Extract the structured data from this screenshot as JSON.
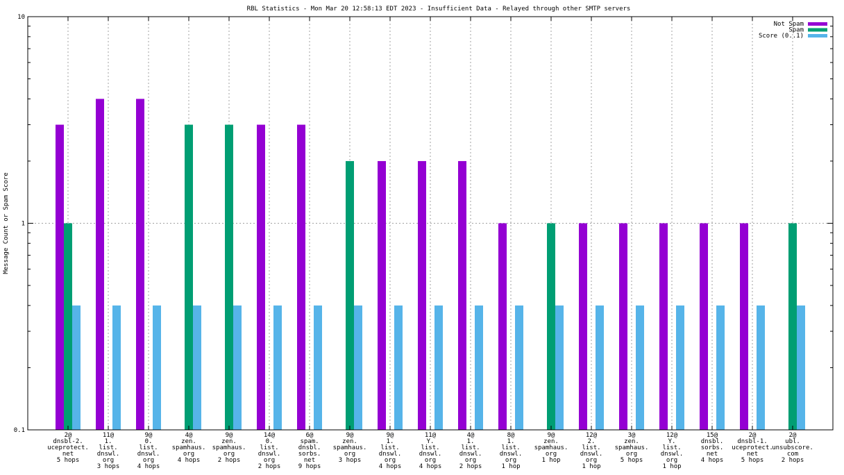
{
  "chart_data": {
    "type": "bar",
    "title": "RBL Statistics - Mon Mar 20 12:58:13 EDT 2023 - Insufficient Data - Relayed through other SMTP servers",
    "xlabel": "",
    "ylabel": "Message Count or Spam Score",
    "yscale": "log",
    "ylim": [
      0.1,
      10
    ],
    "yticks": [
      {
        "value": 0.1,
        "label": "0.1"
      },
      {
        "value": 1,
        "label": "1"
      },
      {
        "value": 10,
        "label": "10"
      }
    ],
    "grid": true,
    "legend_position": "top-right",
    "categories": [
      [
        "2@",
        "dnsbl-2.",
        "uceprotect.",
        "net",
        "5 hops"
      ],
      [
        "11@",
        "1.",
        "list.",
        "dnswl.",
        "org",
        "3 hops"
      ],
      [
        "9@",
        "0.",
        "list.",
        "dnswl.",
        "org",
        "4 hops"
      ],
      [
        "4@",
        "zen.",
        "spamhaus.",
        "org",
        "4 hops"
      ],
      [
        "9@",
        "zen.",
        "spamhaus.",
        "org",
        "2 hops"
      ],
      [
        "14@",
        "0.",
        "list.",
        "dnswl.",
        "org",
        "2 hops"
      ],
      [
        "6@",
        "spam.",
        "dnsbl.",
        "sorbs.",
        "net",
        "9 hops"
      ],
      [
        "9@",
        "zen.",
        "spamhaus.",
        "org",
        "3 hops"
      ],
      [
        "9@",
        "1.",
        "list.",
        "dnswl.",
        "org",
        "4 hops"
      ],
      [
        "11@",
        "Y.",
        "list.",
        "dnswl.",
        "org",
        "4 hops"
      ],
      [
        "4@",
        "1.",
        "list.",
        "dnswl.",
        "org",
        "2 hops"
      ],
      [
        "8@",
        "1.",
        "list.",
        "dnswl.",
        "org",
        "1 hop"
      ],
      [
        "9@",
        "zen.",
        "spamhaus.",
        "org",
        "1 hop"
      ],
      [
        "12@",
        "2.",
        "list.",
        "dnswl.",
        "org",
        "1 hop"
      ],
      [
        "3@",
        "zen.",
        "spamhaus.",
        "org",
        "5 hops"
      ],
      [
        "12@",
        "Y.",
        "list.",
        "dnswl.",
        "org",
        "1 hop"
      ],
      [
        "15@",
        "dnsbl.",
        "sorbs.",
        "net",
        "4 hops"
      ],
      [
        "2@",
        "dnsbl-1.",
        "uceprotect.",
        "net",
        "5 hops"
      ],
      [
        "2@",
        "ubl.",
        "unsubscore.",
        "com",
        "2 hops"
      ]
    ],
    "series": [
      {
        "name": "Not Spam",
        "color": "#9400d3",
        "values": [
          3,
          4,
          4,
          0,
          0,
          3,
          3,
          0,
          2,
          2,
          2,
          1,
          0,
          1,
          1,
          1,
          1,
          1,
          0
        ]
      },
      {
        "name": "Spam",
        "color": "#009e73",
        "values": [
          1,
          0,
          0,
          3,
          3,
          0,
          0,
          2,
          0,
          0,
          0,
          0,
          1,
          0,
          0,
          0,
          0,
          0,
          1
        ]
      },
      {
        "name": "Score (0..1)",
        "color": "#56b4e9",
        "values": [
          0.4,
          0.4,
          0.4,
          0.4,
          0.4,
          0.4,
          0.4,
          0.4,
          0.4,
          0.4,
          0.4,
          0.4,
          0.4,
          0.4,
          0.4,
          0.4,
          0.4,
          0.4,
          0.4
        ]
      }
    ]
  }
}
